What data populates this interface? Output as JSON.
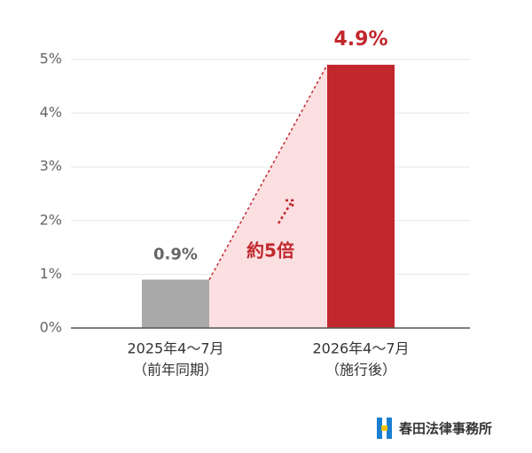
{
  "chart_data": {
    "type": "bar",
    "categories": [
      [
        "2025年4～7月",
        "（前年同期）"
      ],
      [
        "2026年4～7月",
        "（施行後）"
      ]
    ],
    "values": [
      0.9,
      4.9
    ],
    "value_labels": [
      "0.9%",
      "4.9%"
    ],
    "colors": [
      "#a9a9a9",
      "#c1272d"
    ],
    "ylim": [
      0,
      5
    ],
    "yticks": [
      {
        "value": 0,
        "label": "0%"
      },
      {
        "value": 1,
        "label": "1%"
      },
      {
        "value": 2,
        "label": "2%"
      },
      {
        "value": 3,
        "label": "3%"
      },
      {
        "value": 4,
        "label": "4%"
      },
      {
        "value": 5,
        "label": "5%"
      }
    ],
    "grid": true,
    "annotation": "約5倍"
  },
  "footer": {
    "logo_text": "春田法律事務所"
  }
}
